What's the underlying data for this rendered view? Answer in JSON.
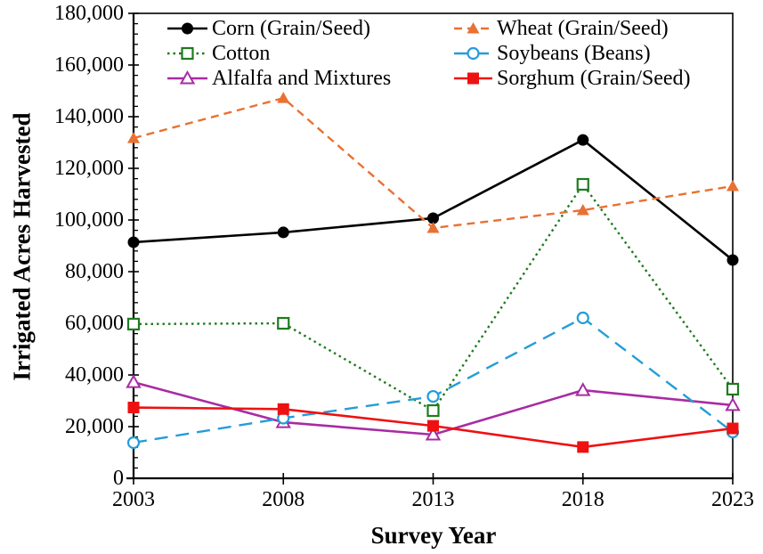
{
  "figure": {
    "background": "#ffffff",
    "text_color": "#000000"
  },
  "chart_data": {
    "type": "line",
    "title": "",
    "xlabel": "Survey Year",
    "ylabel": "Irrigated Acres Harvested",
    "x": [
      2003,
      2008,
      2013,
      2018,
      2023
    ],
    "x_tick_labels": [
      "2003",
      "2008",
      "2013",
      "2018",
      "2023"
    ],
    "y_axis": {
      "min": 0,
      "max": 180000,
      "major_tick": 20000,
      "minor_tick": 4000,
      "tick_labels": [
        "0",
        "20,000",
        "40,000",
        "60,000",
        "80,000",
        "100,000",
        "120,000",
        "140,000",
        "160,000",
        "180,000"
      ]
    },
    "grid": false,
    "legend_position": "inside-top-two-columns",
    "series": [
      {
        "name": "Corn (Grain/Seed)",
        "color": "#000000",
        "line_style": "solid",
        "marker": "filled-circle",
        "values": [
          91400,
          95200,
          100700,
          131000,
          84500
        ]
      },
      {
        "name": "Cotton",
        "color": "#1E7B1E",
        "line_style": "dotted",
        "marker": "open-square",
        "values": [
          59700,
          60000,
          26200,
          113800,
          34500
        ]
      },
      {
        "name": "Alfalfa and Mixtures",
        "color": "#A82BA4",
        "line_style": "solid",
        "marker": "open-triangle",
        "values": [
          37200,
          21700,
          16900,
          34100,
          28300
        ]
      },
      {
        "name": "Wheat (Grain/Seed)",
        "color": "#E97132",
        "line_style": "dashed",
        "marker": "filled-triangle",
        "values": [
          131700,
          147200,
          96900,
          103800,
          113100
        ]
      },
      {
        "name": "Soybeans (Beans)",
        "color": "#259CD8",
        "line_style": "long-dash",
        "marker": "open-circle",
        "values": [
          13800,
          23300,
          31700,
          62100,
          17900
        ]
      },
      {
        "name": "Sorghum (Grain/Seed)",
        "color": "#EE1111",
        "line_style": "solid",
        "marker": "filled-square",
        "values": [
          27400,
          26800,
          20300,
          12100,
          19300
        ]
      }
    ]
  }
}
